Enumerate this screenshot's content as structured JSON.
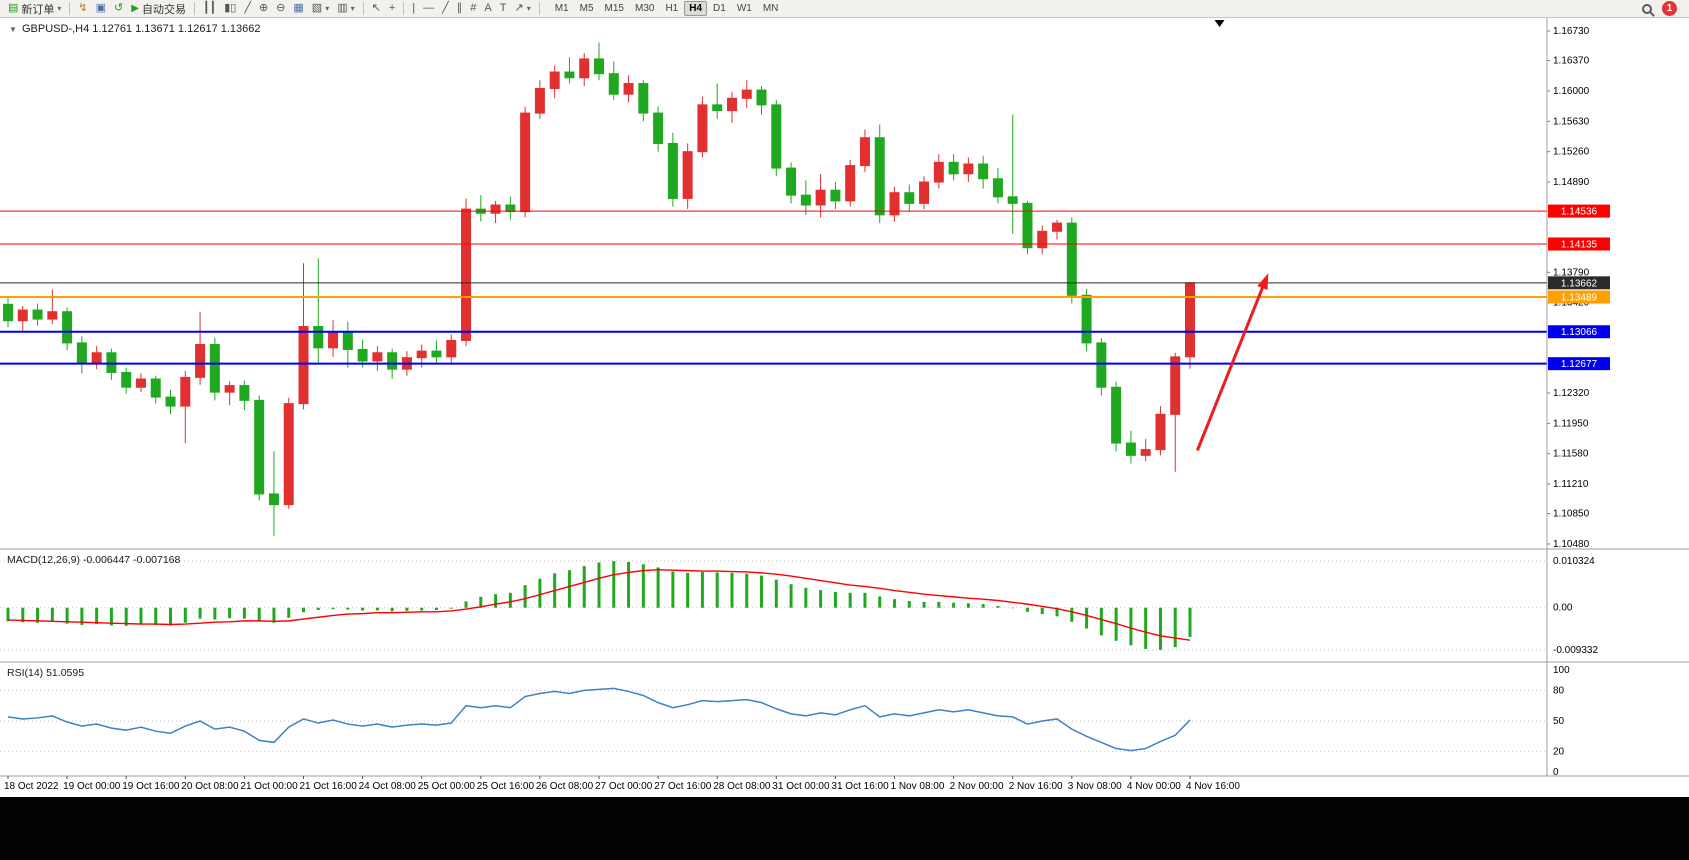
{
  "toolbar": {
    "new_order_label": "新订单",
    "autotrade_label": "自动交易",
    "timeframes": [
      "M1",
      "M5",
      "M15",
      "M30",
      "H1",
      "H4",
      "D1",
      "W1",
      "MN"
    ],
    "active_timeframe": "H4",
    "notification_count": "1",
    "tool_labels": {
      "text": "A",
      "label": "T"
    }
  },
  "icons": {
    "new_order": "▤",
    "dropdown": "▾",
    "lightning": "↯",
    "windows": "▣",
    "rotate": "↺",
    "play": "▶",
    "chart_bars": "┃┃",
    "chart_candles": "▮▯",
    "chart_line": "╱",
    "zoom_in": "⊕",
    "zoom_out": "⊖",
    "tile": "▦",
    "new_chart": "▧",
    "profiles": "▥",
    "cursor": "↖",
    "crosshair": "+",
    "vline": "|",
    "hline": "—",
    "trendline": "╱",
    "channel": "∥",
    "fibonacci": "#",
    "arrow_tool": "↗",
    "one_click": "▼"
  },
  "chart": {
    "title_line": "GBPUSD-,H4 1.12761 1.13671 1.12617 1.13662"
  },
  "indicators": {
    "macd_label": "MACD(12,26,9) -0.006447 -0.007168",
    "rsi_label": "RSI(14) 51.0595"
  },
  "chart_data": {
    "type": "candlestick",
    "symbol": "GBPUSD-",
    "timeframe": "H4",
    "current_ohlc": {
      "open": 1.12761,
      "high": 1.13671,
      "low": 1.12617,
      "close": 1.13662
    },
    "up_color": "#E03030",
    "down_color": "#21A821",
    "price_axis": {
      "min": 1.1048,
      "max": 1.1673,
      "ticks": [
        1.1673,
        1.1637,
        1.16,
        1.1563,
        1.1526,
        1.1489,
        1.1379,
        1.1342,
        1.1232,
        1.1195,
        1.1158,
        1.1121,
        1.1085,
        1.1048
      ]
    },
    "bars_per_label": 4,
    "time_labels": [
      "18 Oct 2022",
      "19 Oct 00:00",
      "19 Oct 16:00",
      "20 Oct 08:00",
      "21 Oct 00:00",
      "21 Oct 16:00",
      "24 Oct 08:00",
      "25 Oct 00:00",
      "25 Oct 16:00",
      "26 Oct 08:00",
      "27 Oct 00:00",
      "27 Oct 16:00",
      "28 Oct 08:00",
      "31 Oct 00:00",
      "31 Oct 16:00",
      "1 Nov 08:00",
      "2 Nov 00:00",
      "2 Nov 16:00",
      "3 Nov 08:00",
      "4 Nov 00:00",
      "4 Nov 16:00"
    ],
    "candles": [
      [
        1.134,
        1.1348,
        1.1312,
        1.132
      ],
      [
        1.132,
        1.1338,
        1.1308,
        1.1333
      ],
      [
        1.1333,
        1.1341,
        1.1314,
        1.1322
      ],
      [
        1.1322,
        1.1358,
        1.1316,
        1.1331
      ],
      [
        1.1331,
        1.1336,
        1.1284,
        1.1293
      ],
      [
        1.1293,
        1.1301,
        1.1256,
        1.1268
      ],
      [
        1.1268,
        1.1289,
        1.1261,
        1.1281
      ],
      [
        1.1281,
        1.1286,
        1.1248,
        1.1257
      ],
      [
        1.1257,
        1.1263,
        1.1231,
        1.1239
      ],
      [
        1.1239,
        1.1256,
        1.1233,
        1.1249
      ],
      [
        1.1249,
        1.1253,
        1.1219,
        1.1227
      ],
      [
        1.1227,
        1.1236,
        1.1206,
        1.1216
      ],
      [
        1.1216,
        1.1259,
        1.1171,
        1.1251
      ],
      [
        1.1251,
        1.1331,
        1.1242,
        1.1291
      ],
      [
        1.1291,
        1.1299,
        1.1223,
        1.1233
      ],
      [
        1.1233,
        1.1246,
        1.1217,
        1.1241
      ],
      [
        1.1241,
        1.1247,
        1.1211,
        1.1223
      ],
      [
        1.1223,
        1.1229,
        1.1101,
        1.1109
      ],
      [
        1.1109,
        1.1161,
        1.1058,
        1.1096
      ],
      [
        1.1096,
        1.1226,
        1.1091,
        1.1219
      ],
      [
        1.1219,
        1.139,
        1.1212,
        1.1313
      ],
      [
        1.1313,
        1.1396,
        1.1269,
        1.1287
      ],
      [
        1.1287,
        1.1321,
        1.1276,
        1.1306
      ],
      [
        1.1306,
        1.1319,
        1.1263,
        1.1285
      ],
      [
        1.1285,
        1.1297,
        1.1263,
        1.1271
      ],
      [
        1.1271,
        1.1289,
        1.1259,
        1.1281
      ],
      [
        1.1281,
        1.1286,
        1.1249,
        1.1261
      ],
      [
        1.1261,
        1.1283,
        1.1253,
        1.1275
      ],
      [
        1.1275,
        1.1291,
        1.1263,
        1.1283
      ],
      [
        1.1283,
        1.1296,
        1.1269,
        1.1276
      ],
      [
        1.1276,
        1.1303,
        1.1266,
        1.1296
      ],
      [
        1.1296,
        1.1469,
        1.1289,
        1.1456
      ],
      [
        1.1456,
        1.1473,
        1.1441,
        1.1451
      ],
      [
        1.1451,
        1.1466,
        1.1439,
        1.1461
      ],
      [
        1.1461,
        1.1471,
        1.1443,
        1.1453
      ],
      [
        1.1453,
        1.1581,
        1.1446,
        1.1573
      ],
      [
        1.1573,
        1.1613,
        1.1566,
        1.1603
      ],
      [
        1.1603,
        1.1631,
        1.1591,
        1.1623
      ],
      [
        1.1623,
        1.1641,
        1.1609,
        1.1616
      ],
      [
        1.1616,
        1.1646,
        1.1606,
        1.1639
      ],
      [
        1.1639,
        1.1659,
        1.1613,
        1.1621
      ],
      [
        1.1621,
        1.1636,
        1.1589,
        1.1596
      ],
      [
        1.1596,
        1.1619,
        1.1586,
        1.1609
      ],
      [
        1.1609,
        1.1613,
        1.1563,
        1.1573
      ],
      [
        1.1573,
        1.1581,
        1.1526,
        1.1536
      ],
      [
        1.1536,
        1.1549,
        1.1459,
        1.1469
      ],
      [
        1.1469,
        1.1536,
        1.1456,
        1.1526
      ],
      [
        1.1526,
        1.1593,
        1.1519,
        1.1583
      ],
      [
        1.1583,
        1.1609,
        1.1566,
        1.1576
      ],
      [
        1.1576,
        1.1599,
        1.1561,
        1.1591
      ],
      [
        1.1591,
        1.1613,
        1.1579,
        1.1601
      ],
      [
        1.1601,
        1.1606,
        1.1571,
        1.1583
      ],
      [
        1.1583,
        1.1589,
        1.1496,
        1.1506
      ],
      [
        1.1506,
        1.1513,
        1.1463,
        1.1473
      ],
      [
        1.1473,
        1.1491,
        1.1449,
        1.1461
      ],
      [
        1.1461,
        1.1499,
        1.1446,
        1.1479
      ],
      [
        1.1479,
        1.1489,
        1.1456,
        1.1466
      ],
      [
        1.1466,
        1.1516,
        1.1459,
        1.1509
      ],
      [
        1.1509,
        1.1553,
        1.1501,
        1.1543
      ],
      [
        1.1543,
        1.1559,
        1.1439,
        1.1449
      ],
      [
        1.1449,
        1.1483,
        1.1441,
        1.1476
      ],
      [
        1.1476,
        1.1486,
        1.1453,
        1.1463
      ],
      [
        1.1463,
        1.1496,
        1.1456,
        1.1489
      ],
      [
        1.1489,
        1.1523,
        1.1481,
        1.1513
      ],
      [
        1.1513,
        1.1523,
        1.1491,
        1.1499
      ],
      [
        1.1499,
        1.1519,
        1.1489,
        1.1511
      ],
      [
        1.1511,
        1.1521,
        1.1481,
        1.1493
      ],
      [
        1.1493,
        1.1506,
        1.1463,
        1.1471
      ],
      [
        1.1471,
        1.1571,
        1.1426,
        1.1463
      ],
      [
        1.1463,
        1.1466,
        1.1401,
        1.1409
      ],
      [
        1.1409,
        1.1436,
        1.1401,
        1.1429
      ],
      [
        1.1429,
        1.1443,
        1.1419,
        1.1439
      ],
      [
        1.1439,
        1.1446,
        1.1341,
        1.1351
      ],
      [
        1.1351,
        1.1359,
        1.1283,
        1.1293
      ],
      [
        1.1293,
        1.1299,
        1.1229,
        1.1239
      ],
      [
        1.1239,
        1.1246,
        1.1161,
        1.1171
      ],
      [
        1.1171,
        1.1186,
        1.1146,
        1.1156
      ],
      [
        1.1156,
        1.1176,
        1.1149,
        1.1163
      ],
      [
        1.1163,
        1.1216,
        1.1156,
        1.1206
      ],
      [
        1.1206,
        1.1281,
        1.1136,
        1.1276
      ],
      [
        1.12761,
        1.13671,
        1.12617,
        1.13662
      ]
    ],
    "hlines": [
      {
        "price": 1.14536,
        "label": "1.14536",
        "color": "#FF0000",
        "width": 1
      },
      {
        "price": 1.14135,
        "label": "1.14135",
        "color": "#FF0000",
        "width": 1
      },
      {
        "price": 1.13662,
        "label": "1.13662",
        "color": "#2B2B2B",
        "width": 1,
        "current": true
      },
      {
        "price": 1.13489,
        "label": "1.13489",
        "color": "#FFA000",
        "width": 2
      },
      {
        "price": 1.13066,
        "label": "1.13066",
        "color": "#0000EE",
        "width": 2
      },
      {
        "price": 1.12677,
        "label": "1.12677",
        "color": "#0000EE",
        "width": 2
      }
    ],
    "trend_arrow": {
      "from": {
        "bar": 80.5,
        "price": 1.1162
      },
      "to": {
        "bar": 85.3,
        "price": 1.1378
      },
      "color": "#EE1C1C"
    },
    "shift_marker_bar": 82,
    "macd": {
      "params": "12,26,9",
      "value_main": -0.006447,
      "value_signal": -0.007168,
      "max": 0.010324,
      "min": -0.009332,
      "axis_labels": [
        "0.010324",
        "0.00",
        "-0.009332"
      ],
      "histogram_color": "#21A821",
      "signal_color": "#FF0000",
      "histogram": [
        -0.003,
        -0.0032,
        -0.0033,
        -0.0031,
        -0.0035,
        -0.0038,
        -0.0036,
        -0.0039,
        -0.004,
        -0.0037,
        -0.0038,
        -0.0039,
        -0.0033,
        -0.0024,
        -0.0026,
        -0.0023,
        -0.0024,
        -0.003,
        -0.0033,
        -0.0022,
        -0.001,
        -0.0005,
        -0.0003,
        -0.0004,
        -0.0006,
        -0.0006,
        -0.0008,
        -0.0007,
        -0.0006,
        -0.0005,
        -0.0002,
        0.0014,
        0.0024,
        0.003,
        0.0033,
        0.005,
        0.0064,
        0.0076,
        0.0083,
        0.0092,
        0.01,
        0.0103,
        0.0101,
        0.0096,
        0.0089,
        0.008,
        0.0077,
        0.0079,
        0.0078,
        0.0077,
        0.0075,
        0.0071,
        0.0062,
        0.0052,
        0.0044,
        0.0039,
        0.0035,
        0.0033,
        0.0033,
        0.0025,
        0.0019,
        0.0015,
        0.0013,
        0.0013,
        0.0011,
        0.001,
        0.0008,
        0.0004,
        -0.0001,
        -0.0009,
        -0.0014,
        -0.0019,
        -0.0031,
        -0.0046,
        -0.0061,
        -0.0073,
        -0.0083,
        -0.0091,
        -0.0093,
        -0.0087,
        -0.006447
      ],
      "signal": [
        -0.0027,
        -0.0028,
        -0.0029,
        -0.003,
        -0.0031,
        -0.0032,
        -0.0033,
        -0.0034,
        -0.0035,
        -0.0036,
        -0.0036,
        -0.0037,
        -0.0036,
        -0.0034,
        -0.0032,
        -0.0031,
        -0.0029,
        -0.0029,
        -0.003,
        -0.0029,
        -0.0025,
        -0.0021,
        -0.0017,
        -0.0014,
        -0.0013,
        -0.0011,
        -0.0011,
        -0.001,
        -0.0009,
        -0.0009,
        -0.0007,
        -0.0003,
        0.0002,
        0.0008,
        0.0013,
        0.002,
        0.0029,
        0.0038,
        0.0047,
        0.0056,
        0.0065,
        0.0073,
        0.0078,
        0.0082,
        0.0084,
        0.0083,
        0.0082,
        0.0081,
        0.0081,
        0.008,
        0.0079,
        0.0077,
        0.0074,
        0.007,
        0.0065,
        0.006,
        0.0055,
        0.005,
        0.0047,
        0.0043,
        0.0038,
        0.0034,
        0.003,
        0.0027,
        0.0024,
        0.0021,
        0.0019,
        0.0016,
        0.0012,
        0.0008,
        0.0003,
        -0.0002,
        -0.0009,
        -0.0017,
        -0.0026,
        -0.0035,
        -0.0045,
        -0.0054,
        -0.0062,
        -0.0067,
        -0.007168
      ]
    },
    "rsi": {
      "period": 14,
      "value": 51.0595,
      "levels": [
        80,
        50,
        20
      ],
      "axis_ticks": [
        100,
        80,
        50,
        20,
        0
      ],
      "color": "#4080C8",
      "values": [
        54,
        52,
        53,
        55,
        49,
        45,
        47,
        43,
        41,
        44,
        40,
        38,
        45,
        50,
        42,
        44,
        40,
        31,
        29,
        44,
        52,
        48,
        51,
        47,
        45,
        47,
        44,
        46,
        47,
        46,
        48,
        65,
        63,
        65,
        63,
        74,
        77,
        79,
        77,
        80,
        81,
        82,
        79,
        75,
        68,
        63,
        66,
        70,
        69,
        70,
        71,
        68,
        62,
        57,
        55,
        58,
        56,
        61,
        65,
        54,
        57,
        55,
        58,
        61,
        59,
        61,
        58,
        55,
        54,
        47,
        50,
        52,
        42,
        35,
        29,
        23,
        21,
        23,
        30,
        36,
        51.0595
      ]
    }
  }
}
